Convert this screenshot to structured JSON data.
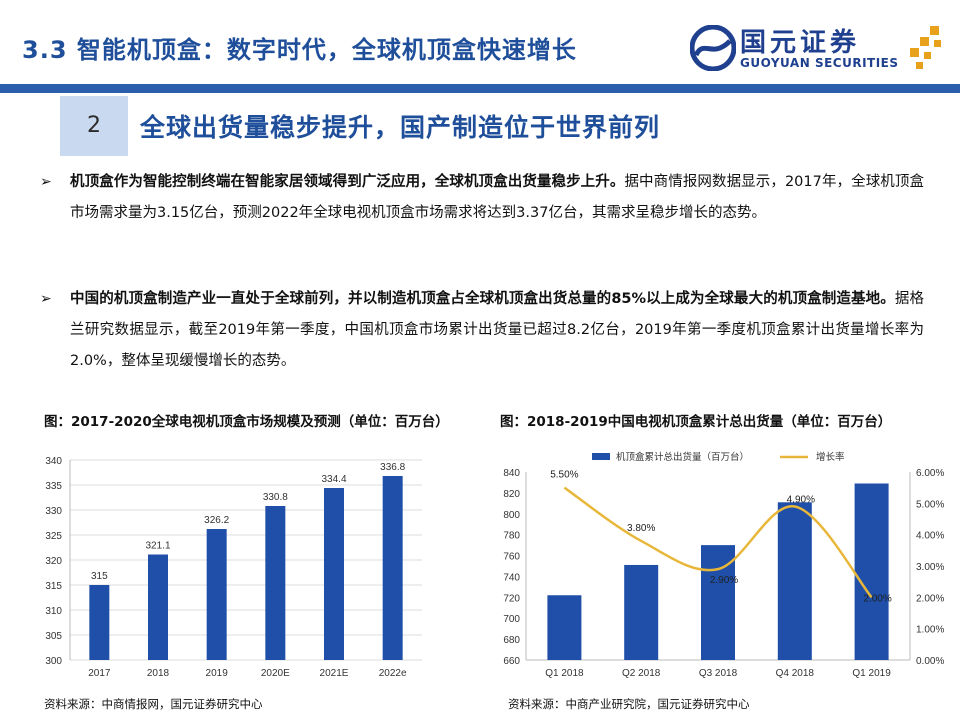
{
  "header": {
    "title": "3.3 智能机顶盒：数字时代，全球机顶盒快速增长",
    "logo_cn": "国元证券",
    "logo_en": "GUOYUAN SECURITIES"
  },
  "section": {
    "number": "2",
    "title": "全球出货量稳步提升，国产制造位于世界前列"
  },
  "bullets": [
    {
      "mark": "➢",
      "bold": "机顶盒作为智能控制终端在智能家居领域得到广泛应用，全球机顶盒出货量稳步上升。",
      "text": "据中商情报网数据显示，2017年，全球机顶盒市场需求量为3.15亿台，预测2022年全球电视机顶盒市场需求将达到3.37亿台，其需求呈稳步增长的态势。"
    },
    {
      "mark": "➢",
      "bold": "中国的机顶盒制造产业一直处于全球前列，并以制造机顶盒占全球机顶盒出货总量的85%以上成为全球最大的机顶盒制造基地。",
      "text": "据格兰研究数据显示，截至2019年第一季度，中国机顶盒市场累计出货量已超过8.2亿台，2019年第一季度机顶盒累计出货量增长率为2.0%，整体呈现缓慢增长的态势。"
    }
  ],
  "figures": {
    "left_caption": "图：2017-2020全球电视机顶盒市场规模及预测（单位：百万台）",
    "right_caption": "图：2018-2019中国电视机顶盒累计总出货量（单位：百万台）",
    "left_source": "资料来源：中商情报网，国元证券研究中心",
    "right_source": "资料来源：中商产业研究院，国元证券研究中心"
  },
  "colors": {
    "brand": "#1f4e9a",
    "bar": "#1f4fa8",
    "line": "#e8b73a"
  },
  "chart_data": [
    {
      "type": "bar",
      "title": "2017-2020全球电视机顶盒市场规模及预测（单位：百万台）",
      "categories": [
        "2017",
        "2018",
        "2019",
        "2020E",
        "2021E",
        "2022e"
      ],
      "values": [
        315,
        321.1,
        326.2,
        330.8,
        334.4,
        336.8
      ],
      "value_labels": [
        "315",
        "321.1",
        "326.2",
        "330.8",
        "334.4",
        "336.8"
      ],
      "ylim": [
        300,
        340
      ],
      "yticks": [
        300,
        305,
        310,
        315,
        320,
        325,
        330,
        335,
        340
      ],
      "grid": true
    },
    {
      "type": "bar+line",
      "title": "2018-2019中国电视机顶盒累计总出货量（单位：百万台）",
      "categories": [
        "Q1 2018",
        "Q2 2018",
        "Q3 2018",
        "Q4 2018",
        "Q1 2019"
      ],
      "series": [
        {
          "name": "机顶盒累计总出货量（百万台）",
          "type": "bar",
          "axis": "left",
          "values": [
            722,
            751,
            770,
            811,
            829
          ]
        },
        {
          "name": "增长率",
          "type": "line",
          "axis": "right",
          "values": [
            5.5,
            3.8,
            2.9,
            4.9,
            2.0
          ],
          "labels": [
            "5.50%",
            "3.80%",
            "2.90%",
            "4.90%",
            "2.00%"
          ]
        }
      ],
      "ylim": [
        660,
        840
      ],
      "yticks": [
        660,
        680,
        700,
        720,
        740,
        760,
        780,
        800,
        820,
        840
      ],
      "y2lim": [
        0,
        6
      ],
      "y2ticks": [
        "0.00%",
        "1.00%",
        "2.00%",
        "3.00%",
        "4.00%",
        "5.00%",
        "6.00%"
      ],
      "legend": "top"
    }
  ]
}
